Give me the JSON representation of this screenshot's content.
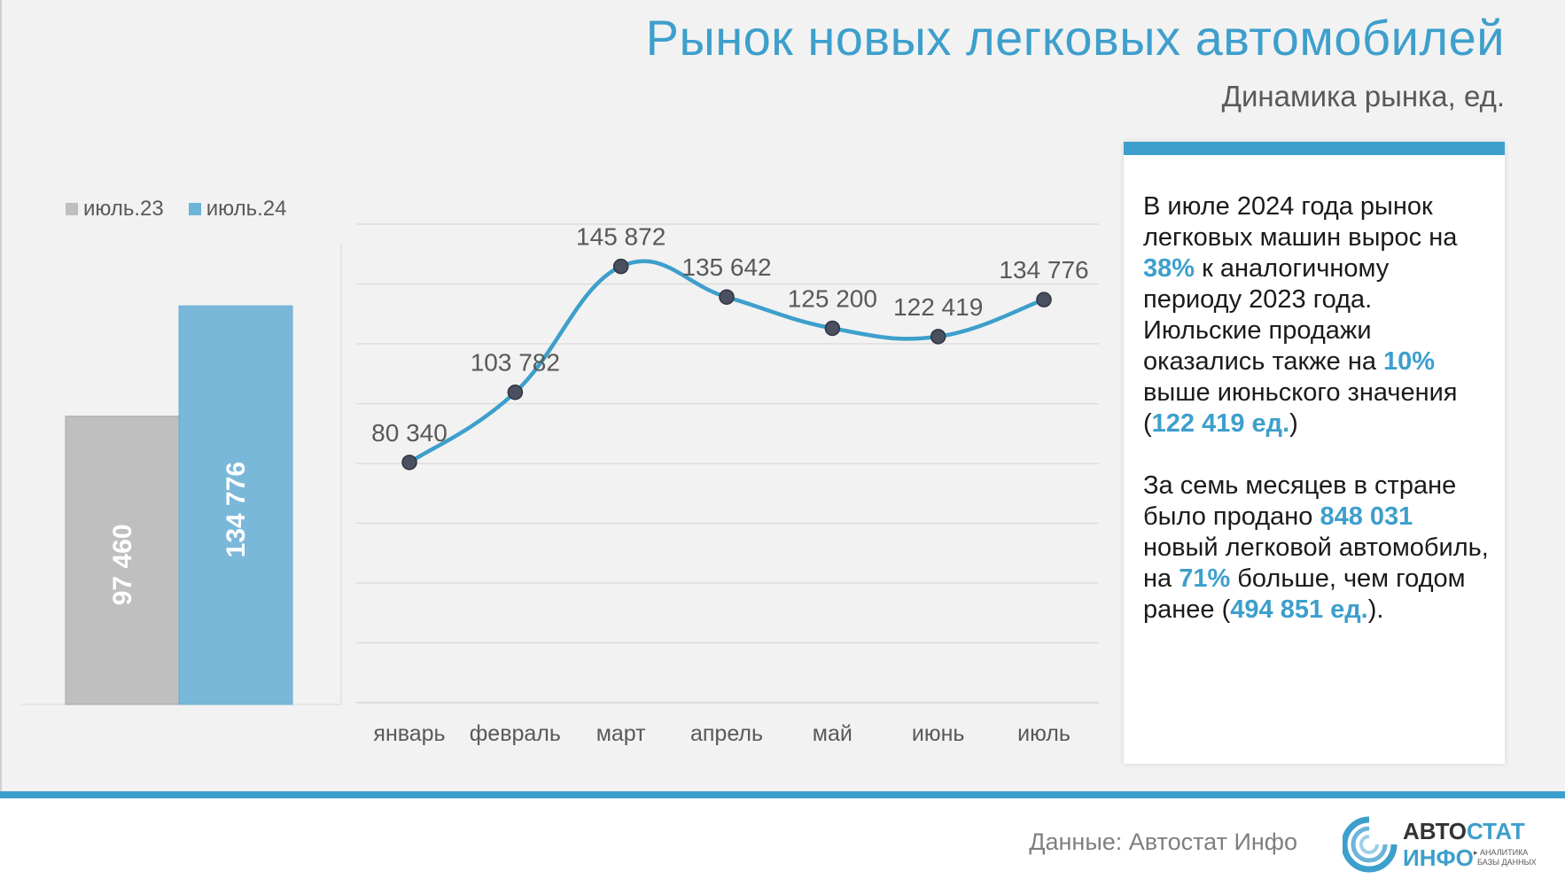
{
  "title": "Рынок новых легковых автомобилей",
  "subtitle": "Динамика рынка, ед.",
  "legend": {
    "items": [
      {
        "label": "июль.23",
        "color": "#bfbfbf"
      },
      {
        "label": "июль.24",
        "color": "#6cb4d9"
      }
    ]
  },
  "chart_data": [
    {
      "type": "bar",
      "categories": [
        "июль.23",
        "июль.24"
      ],
      "values": [
        97460,
        134776
      ],
      "value_labels": [
        "97 460",
        "134 776"
      ],
      "colors": [
        "#bfbfbf",
        "#7ab8d9"
      ],
      "ylim": [
        0,
        160000
      ]
    },
    {
      "type": "line",
      "categories": [
        "январь",
        "февраль",
        "март",
        "апрель",
        "май",
        "июнь",
        "июль"
      ],
      "values": [
        80340,
        103782,
        145872,
        135642,
        125200,
        122419,
        134776
      ],
      "value_labels": [
        "80 340",
        "103 782",
        "145 872",
        "135 642",
        "125 200",
        "122 419",
        "134 776"
      ],
      "ylim": [
        0,
        160000
      ],
      "grid": true,
      "line_color": "#3d9fcc",
      "marker_color": "#4a5060"
    }
  ],
  "panel": {
    "p1": {
      "t1": "В июле 2024 года рынок легковых машин вырос на ",
      "h1": "38%",
      "t2": " к аналогичному периоду 2023 года. Июльские продажи оказались также на ",
      "h2": "10%",
      "t3": " выше июньского значения (",
      "h3": "122 419 ед.",
      "t4": ")"
    },
    "p2": {
      "t1": "За семь месяцев в стране было продано ",
      "h1": "848 031",
      "t2": " новый легковой автомобиль, на ",
      "h2": "71%",
      "t3": " больше, чем годом ранее (",
      "h3": "494 851 ед.",
      "t4": ")."
    }
  },
  "footer": {
    "source": "Данные: Автостат Инфо",
    "logo": {
      "line1a": "АВТО",
      "line1b": "СТАТ",
      "line2": "ИНФО",
      "tag1": "▸ АНАЛИТИКА",
      "tag2": "БАЗЫ ДАННЫХ"
    }
  }
}
